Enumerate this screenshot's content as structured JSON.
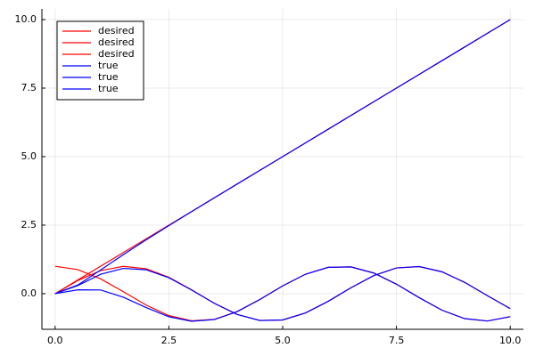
{
  "chart_data": {
    "type": "line",
    "x": [
      0,
      0.5,
      1,
      1.5,
      2,
      2.5,
      3,
      3.5,
      4,
      4.5,
      5,
      5.5,
      6,
      6.5,
      7,
      7.5,
      8,
      8.5,
      9,
      9.5,
      10
    ],
    "series": [
      {
        "name": "desired",
        "color": "#ff0000",
        "values": [
          0,
          0.5,
          1,
          1.5,
          2,
          2.5,
          3,
          3.5,
          4,
          4.5,
          5,
          5.5,
          6,
          6.5,
          7,
          7.5,
          8,
          8.5,
          9,
          9.5,
          10
        ]
      },
      {
        "name": "desired",
        "color": "#ff0000",
        "values": [
          1,
          0.8776,
          0.5403,
          0.0707,
          -0.4161,
          -0.8011,
          -0.99,
          -0.9365,
          -0.6536,
          -0.2108,
          0.2837,
          0.7087,
          0.9602,
          0.9766,
          0.7539,
          0.3466,
          -0.1455,
          -0.602,
          -0.9111,
          -0.9972,
          -0.8391
        ]
      },
      {
        "name": "desired",
        "color": "#ff0000",
        "values": [
          0,
          0.4794,
          0.8415,
          0.9975,
          0.9093,
          0.5985,
          0.1411,
          -0.3508,
          -0.7568,
          -0.9775,
          -0.9589,
          -0.7055,
          -0.2794,
          0.2151,
          0.657,
          0.938,
          0.9894,
          0.7985,
          0.4121,
          -0.0752,
          -0.544
        ]
      },
      {
        "name": "true",
        "color": "#0000ff",
        "values": [
          0,
          0.316,
          0.865,
          1.425,
          1.963,
          2.483,
          2.993,
          3.497,
          3.999,
          4.5,
          5,
          5.5,
          6,
          6.5,
          7,
          7.5,
          8,
          8.5,
          9,
          9.5,
          10
        ]
      },
      {
        "name": "true",
        "color": "#0000ff",
        "values": [
          0,
          0.1418,
          0.1343,
          -0.1284,
          -0.5077,
          -0.8415,
          -1.0074,
          -0.9438,
          -0.6566,
          -0.212,
          0.2837,
          0.7087,
          0.9602,
          0.9766,
          0.7539,
          0.3466,
          -0.1455,
          -0.602,
          -0.9111,
          -0.9972,
          -0.8391
        ]
      },
      {
        "name": "true",
        "color": "#0000ff",
        "values": [
          0,
          0.2955,
          0.7062,
          0.9228,
          0.8727,
          0.5817,
          0.1337,
          -0.354,
          -0.7581,
          -0.9781,
          -0.9589,
          -0.7055,
          -0.2794,
          0.2151,
          0.657,
          0.938,
          0.9894,
          0.7985,
          0.4121,
          -0.0752,
          -0.544
        ]
      }
    ],
    "xlim": [
      -0.29,
      10.29
    ],
    "ylim": [
      -1.3,
      10.39
    ],
    "xticks": [
      {
        "value": 0,
        "label": "0.0"
      },
      {
        "value": 2.5,
        "label": "2.5"
      },
      {
        "value": 5,
        "label": "5.0"
      },
      {
        "value": 7.5,
        "label": "7.5"
      },
      {
        "value": 10,
        "label": "10.0"
      }
    ],
    "yticks": [
      {
        "value": 0,
        "label": "0.0"
      },
      {
        "value": 2.5,
        "label": "2.5"
      },
      {
        "value": 5,
        "label": "5.0"
      },
      {
        "value": 7.5,
        "label": "7.5"
      },
      {
        "value": 10,
        "label": "10.0"
      }
    ],
    "grid": true,
    "legend": "top-left"
  }
}
